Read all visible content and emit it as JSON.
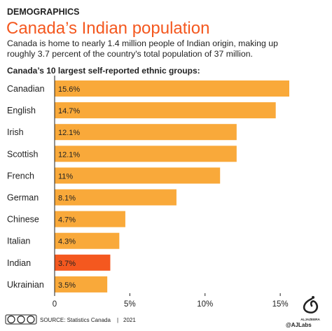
{
  "header": {
    "section": "DEMOGRAPHICS",
    "title": "Canada’s Indian population",
    "subtitle_line1": "Canada is home to nearly 1.4 million people of Indian origin, making up",
    "subtitle_line2": "roughly 3.7 percent of the country's total population of 37 million.",
    "chart_heading": "Canada’s 10 largest self-reported ethnic groups:"
  },
  "footer": {
    "license_icons": [
      "cc",
      "by",
      "nc"
    ],
    "source": "SOURCE: Statistics Canada",
    "year": "2021",
    "credit": "@AJLabs",
    "brand": "ALJAZEERA"
  },
  "colors": {
    "bar": "#f9a93a",
    "highlight": "#f4581f",
    "title": "#f4581f",
    "text": "#222222"
  },
  "chart_data": {
    "type": "bar",
    "orientation": "horizontal",
    "categories": [
      "Canadian",
      "English",
      "Irish",
      "Scottish",
      "French",
      "German",
      "Chinese",
      "Italian",
      "Indian",
      "Ukrainian"
    ],
    "values": [
      15.6,
      14.7,
      12.1,
      12.1,
      11,
      8.1,
      4.7,
      4.3,
      3.7,
      3.5
    ],
    "data_labels": [
      "15.6%",
      "14.7%",
      "12.1%",
      "12.1%",
      "11%",
      "8.1%",
      "4.7%",
      "4.3%",
      "3.7%",
      "3.5%"
    ],
    "highlight_category": "Indian",
    "xlim": [
      0,
      15.6
    ],
    "xticks": [
      0,
      5,
      10,
      15
    ],
    "xtick_labels": [
      "0",
      "5%",
      "10%",
      "15%"
    ],
    "grid": false,
    "legend": "none"
  }
}
